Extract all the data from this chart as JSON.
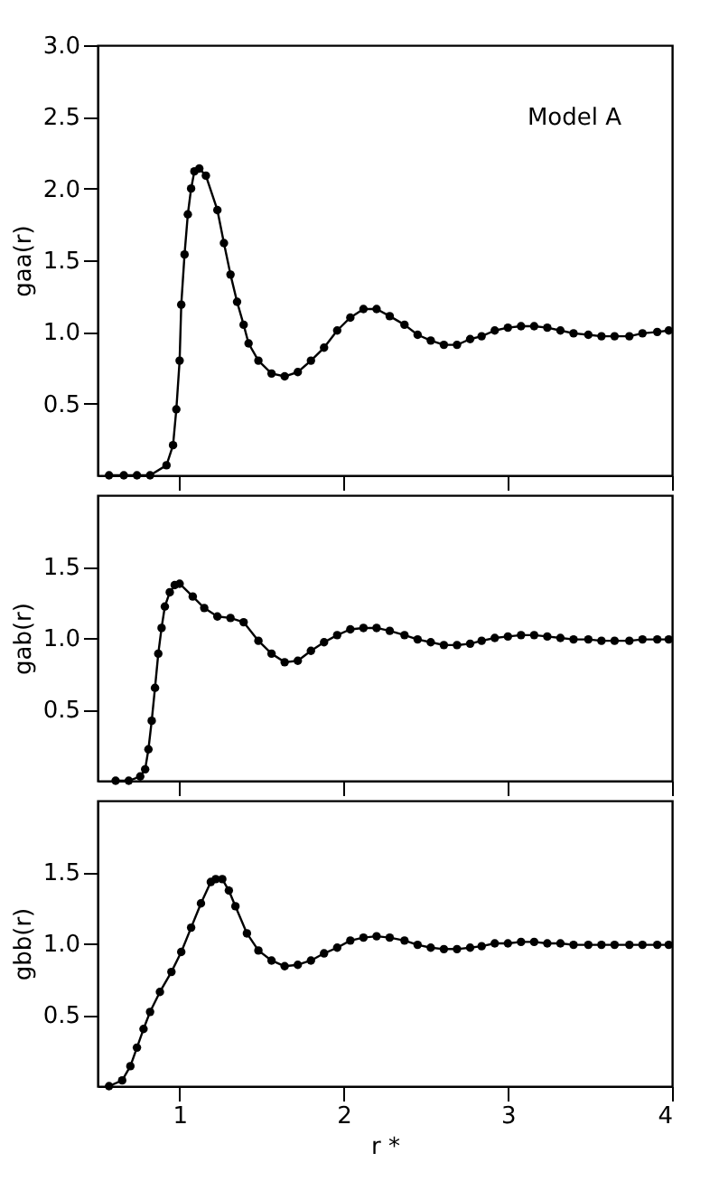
{
  "chart_data": [
    {
      "type": "line",
      "ylabel": "gaa(r)",
      "annotations": [
        "Model A"
      ],
      "marker": "circle",
      "line_style": "solid",
      "tick_labels": "y",
      "xlim": [
        0.5,
        4
      ],
      "xticks": [
        1,
        2,
        3,
        4
      ],
      "ylim": [
        0,
        3
      ],
      "yticks": [
        0.5,
        {
          "value": 1,
          "label": "1.0"
        },
        1.5,
        {
          "value": 2,
          "label": "2.0"
        },
        2.5,
        {
          "value": 3,
          "label": "3.0"
        }
      ],
      "x": [
        0.57,
        0.66,
        0.74,
        0.82,
        0.92,
        0.96,
        0.98,
        1.0,
        1.01,
        1.03,
        1.05,
        1.07,
        1.09,
        1.12,
        1.16,
        1.23,
        1.27,
        1.31,
        1.35,
        1.39,
        1.42,
        1.48,
        1.56,
        1.64,
        1.72,
        1.8,
        1.88,
        1.96,
        2.04,
        2.12,
        2.2,
        2.28,
        2.37,
        2.45,
        2.53,
        2.61,
        2.69,
        2.77,
        2.84,
        2.92,
        3.0,
        3.08,
        3.16,
        3.24,
        3.32,
        3.4,
        3.49,
        3.57,
        3.65,
        3.74,
        3.82,
        3.91,
        3.98
      ],
      "series": [
        {
          "color": "#000000",
          "values": [
            0,
            0,
            0,
            0,
            0.07,
            0.21,
            0.46,
            0.8,
            1.19,
            1.54,
            1.82,
            2.0,
            2.12,
            2.14,
            2.09,
            1.85,
            1.62,
            1.4,
            1.21,
            1.05,
            0.92,
            0.8,
            0.71,
            0.69,
            0.72,
            0.8,
            0.89,
            1.01,
            1.1,
            1.16,
            1.16,
            1.11,
            1.05,
            0.98,
            0.94,
            0.91,
            0.91,
            0.95,
            0.97,
            1.01,
            1.03,
            1.04,
            1.04,
            1.03,
            1.01,
            0.99,
            0.98,
            0.97,
            0.97,
            0.97,
            0.99,
            1.0,
            1.01
          ]
        }
      ]
    },
    {
      "type": "line",
      "ylabel": "gab(r)",
      "marker": "circle",
      "line_style": "solid",
      "tick_labels": "y",
      "xlim": [
        0.5,
        4
      ],
      "xticks": [
        1,
        2,
        3,
        4
      ],
      "ylim": [
        0,
        2
      ],
      "yticks": [
        0.5,
        {
          "value": 1,
          "label": "1.0"
        },
        1.5
      ],
      "x": [
        0.61,
        0.69,
        0.76,
        0.79,
        0.81,
        0.83,
        0.85,
        0.87,
        0.89,
        0.91,
        0.94,
        0.97,
        1.0,
        1.08,
        1.15,
        1.23,
        1.31,
        1.39,
        1.48,
        1.56,
        1.64,
        1.72,
        1.8,
        1.88,
        1.96,
        2.04,
        2.12,
        2.2,
        2.28,
        2.37,
        2.45,
        2.53,
        2.61,
        2.69,
        2.77,
        2.84,
        2.92,
        3.0,
        3.08,
        3.16,
        3.24,
        3.32,
        3.4,
        3.49,
        3.57,
        3.65,
        3.74,
        3.82,
        3.91,
        3.98
      ],
      "series": [
        {
          "color": "#000000",
          "values": [
            0,
            0,
            0.03,
            0.08,
            0.22,
            0.42,
            0.65,
            0.89,
            1.07,
            1.22,
            1.32,
            1.37,
            1.38,
            1.29,
            1.21,
            1.15,
            1.14,
            1.11,
            0.98,
            0.89,
            0.83,
            0.84,
            0.91,
            0.97,
            1.02,
            1.06,
            1.07,
            1.07,
            1.05,
            1.02,
            0.99,
            0.97,
            0.95,
            0.95,
            0.96,
            0.98,
            1.0,
            1.01,
            1.02,
            1.02,
            1.01,
            1.0,
            0.99,
            0.99,
            0.98,
            0.98,
            0.98,
            0.99,
            0.99,
            0.99
          ]
        }
      ]
    },
    {
      "type": "line",
      "ylabel": "gbb(r)",
      "xlabel": "r *",
      "marker": "circle",
      "line_style": "solid",
      "xlim": [
        0.5,
        4
      ],
      "xticks": [
        1,
        2,
        3,
        4
      ],
      "ylim": [
        0,
        2
      ],
      "yticks": [
        0.5,
        {
          "value": 1,
          "label": "1.0"
        },
        1.5
      ],
      "x": [
        0.57,
        0.65,
        0.7,
        0.74,
        0.78,
        0.82,
        0.88,
        0.95,
        1.01,
        1.07,
        1.13,
        1.19,
        1.22,
        1.26,
        1.3,
        1.34,
        1.41,
        1.48,
        1.56,
        1.64,
        1.72,
        1.8,
        1.88,
        1.96,
        2.04,
        2.12,
        2.2,
        2.28,
        2.37,
        2.45,
        2.53,
        2.61,
        2.69,
        2.77,
        2.84,
        2.92,
        3.0,
        3.08,
        3.16,
        3.24,
        3.32,
        3.4,
        3.49,
        3.57,
        3.65,
        3.74,
        3.82,
        3.91,
        3.98
      ],
      "series": [
        {
          "color": "#000000",
          "values": [
            0,
            0.04,
            0.14,
            0.27,
            0.4,
            0.52,
            0.66,
            0.8,
            0.94,
            1.11,
            1.28,
            1.43,
            1.45,
            1.45,
            1.37,
            1.26,
            1.07,
            0.95,
            0.88,
            0.84,
            0.85,
            0.88,
            0.93,
            0.97,
            1.02,
            1.04,
            1.05,
            1.04,
            1.02,
            0.99,
            0.97,
            0.96,
            0.96,
            0.97,
            0.98,
            1.0,
            1.0,
            1.01,
            1.01,
            1.0,
            1.0,
            0.99,
            0.99,
            0.99,
            0.99,
            0.99,
            0.99,
            0.99,
            0.99
          ]
        }
      ]
    }
  ]
}
